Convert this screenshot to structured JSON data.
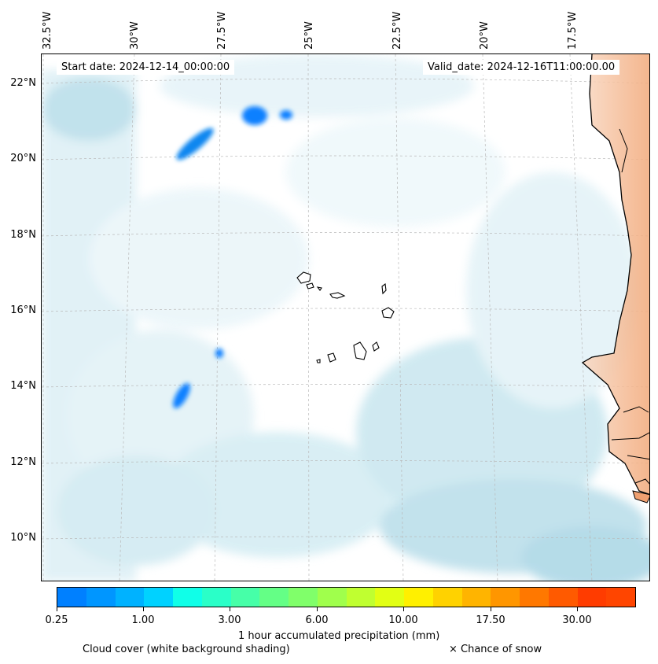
{
  "map": {
    "start_date": "Start date: 2024-12-14_00:00:00",
    "valid_date": "Valid_date: 2024-12-16T11:00:00.00",
    "longitude_labels": [
      "32.5°W",
      "30°W",
      "27.5°W",
      "25°W",
      "22.5°W",
      "20°W",
      "17.5°W"
    ],
    "latitude_labels": [
      "22°N",
      "20°N",
      "18°N",
      "16°N",
      "14°N",
      "12°N",
      "10°N"
    ],
    "colors": {
      "cloud_cover": "#a9d6e5",
      "land_warm": "#f08a4b",
      "coastline": "#000000",
      "gridline": "#b0b0b0"
    }
  },
  "colorbar": {
    "colors": [
      "#0080ff",
      "#0096ff",
      "#00b2ff",
      "#00d2ff",
      "#10ffe8",
      "#2affc8",
      "#46ffa8",
      "#64ff86",
      "#80ff6a",
      "#a0ff4c",
      "#c0ff30",
      "#e2ff14",
      "#fff000",
      "#ffd200",
      "#ffb400",
      "#ff9600",
      "#ff7800",
      "#ff5a00",
      "#ff3c00",
      "#ff4500"
    ],
    "tick_labels": [
      "0.25",
      "1.00",
      "3.00",
      "6.00",
      "10.00",
      "17.50",
      "30.00"
    ],
    "label": "1 hour accumulated precipitation (mm)"
  },
  "legend": {
    "cloud_cover": "Cloud cover (white background shading)",
    "snow": "× Chance of snow"
  }
}
